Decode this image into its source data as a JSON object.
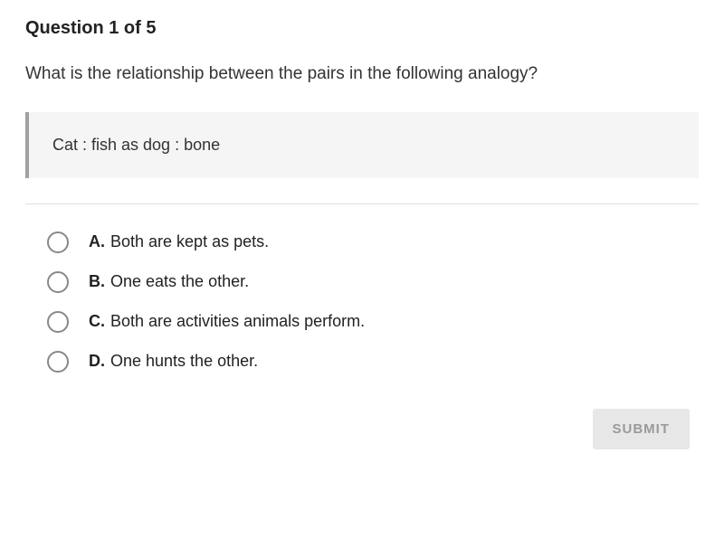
{
  "question_counter": "Question 1 of 5",
  "question_text": "What is the relationship between the pairs in the following analogy?",
  "analogy": "Cat : fish as dog : bone",
  "options": [
    {
      "letter": "A.",
      "text": "Both are kept as pets."
    },
    {
      "letter": "B.",
      "text": "One eats the other."
    },
    {
      "letter": "C.",
      "text": "Both are activities animals perform."
    },
    {
      "letter": "D.",
      "text": "One hunts the other."
    }
  ],
  "submit_label": "SUBMIT",
  "colors": {
    "background": "#ffffff",
    "text": "#333333",
    "heading": "#222222",
    "analogy_bg": "#f5f5f5",
    "analogy_border": "#a0a0a0",
    "divider": "#e0e0e0",
    "radio_border": "#888888",
    "submit_bg": "#e7e7e7",
    "submit_text": "#9a9a9a"
  }
}
